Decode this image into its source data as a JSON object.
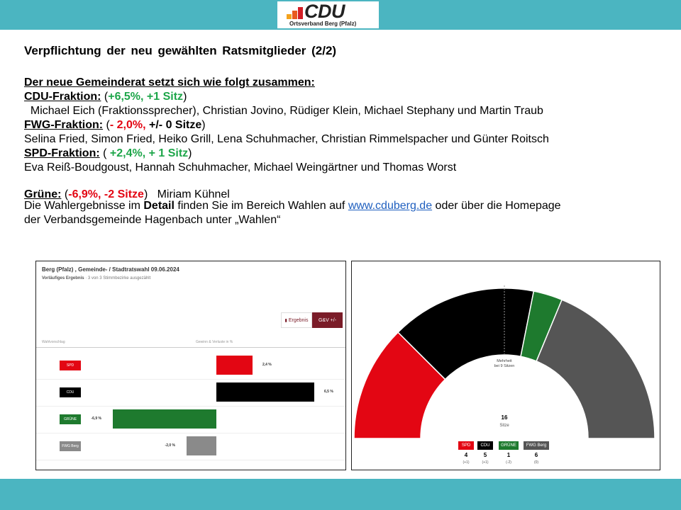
{
  "logo": {
    "text": "CDU",
    "subtitle": "Ortsverband Berg (Pfalz)",
    "block_colors": [
      "#f4a21d",
      "#e95a1e",
      "#d41f26"
    ]
  },
  "slide": {
    "title": "Verpflichtung der neu gewählten Ratsmitglieder (2/2)",
    "intro": "Der neue Gemeinderat setzt sich wie folgt zusammen:",
    "factions": [
      {
        "label": "CDU-Fraktion:",
        "change_open": " (",
        "change": "+6,5%, +1 Sitz",
        "change_close": ")",
        "members": "  Michael Eich (Fraktionssprecher), Christian Jovino, Rüdiger Klein, Michael Stephany und Martin Traub"
      },
      {
        "label": "FWG-Fraktion:",
        "change_open": " (",
        "change": "- 2,0%,",
        "change_extra": " +/- 0 Sitze",
        "change_close": ")",
        "members": "Selina Fried, Simon Fried, Heiko Grill, Lena Schuhmacher, Christian Rimmelspacher und Günter Roitsch"
      },
      {
        "label": "SPD-Fraktion:",
        "change_open": " ( ",
        "change": "+2,4%, + 1 Sitz",
        "change_close": ")",
        "members": "Eva Reiß-Boudgoust, Hannah Schuhmacher, Michael Weingärtner und Thomas Worst"
      },
      {
        "label": "Grüne:",
        "change_open": " (",
        "change": "-6,9%, -2 Sitze",
        "change_close": ")",
        "members": "   Miriam Kühnel"
      }
    ],
    "footer_pre": "Die Wahlergebnisse im ",
    "footer_bold": "Detail",
    "footer_mid": " finden Sie im Bereich Wahlen auf ",
    "footer_link": "www.cduberg.de",
    "footer_post": " oder über die Homepage",
    "footer_line2": "der Verbandsgemeinde Hagenbach unter „Wahlen“"
  },
  "panel_results": {
    "title": "Berg (Pfalz) , Gemeinde- / Stadtratswahl 09.06.2024",
    "subtitle_bold": "Vorläufiges Ergebnis",
    "subtitle_rest": " · 3 von 3 Stimmbezirke ausgezählt",
    "toggle_results": "Ergebnis",
    "toggle_gv": "G&V +/-",
    "col_left": "Wahlvorschlag",
    "col_right": "Gewinn & Verluste in %"
  },
  "chart_data": {
    "type": "bar",
    "categories": [
      "SPD",
      "CDU",
      "GRÜNE",
      "FWG Berg"
    ],
    "values": [
      2.4,
      6.5,
      -6.9,
      -2.0
    ],
    "value_labels": [
      "2,4 %",
      "6,5 %",
      "-6,9 %",
      "-2,0 %"
    ],
    "colors": [
      "#e30613",
      "#000000",
      "#1e7a2e",
      "#8a8a8a"
    ],
    "xlim": [
      -7,
      7
    ]
  },
  "seat_chart": {
    "type": "pie",
    "categories": [
      "SPD",
      "CDU",
      "GRÜNE",
      "FWG Berg"
    ],
    "seats": [
      4,
      5,
      1,
      6
    ],
    "diffs": [
      "(+1)",
      "(+1)",
      "(-2)",
      "(0)"
    ],
    "colors": [
      "#e30613",
      "#000000",
      "#1e7a2e",
      "#555555"
    ],
    "total": 16,
    "total_label": "Sitze",
    "majority_label_1": "Mehrheit",
    "majority_label_2": "bei 9 Sitzen"
  }
}
